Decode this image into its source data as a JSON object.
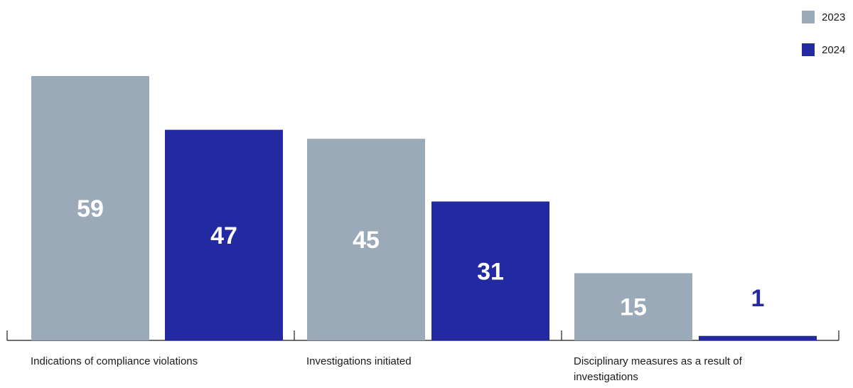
{
  "chart_data": {
    "type": "bar",
    "categories": [
      "Indications of compliance violations",
      "Investigations initiated",
      "Disciplinary measures as a result of investigations"
    ],
    "series": [
      {
        "name": "2023",
        "values": [
          59,
          45,
          15
        ],
        "color": "#9aaab8"
      },
      {
        "name": "2024",
        "values": [
          47,
          31,
          1
        ],
        "color": "#2329a0"
      }
    ],
    "data_labels": [
      [
        "59",
        "45",
        "15"
      ],
      [
        "47",
        "31",
        "1"
      ]
    ],
    "legend_position": "top-right",
    "ylim": [
      0,
      59
    ],
    "grid": false,
    "xlabel": "",
    "ylabel": ""
  }
}
